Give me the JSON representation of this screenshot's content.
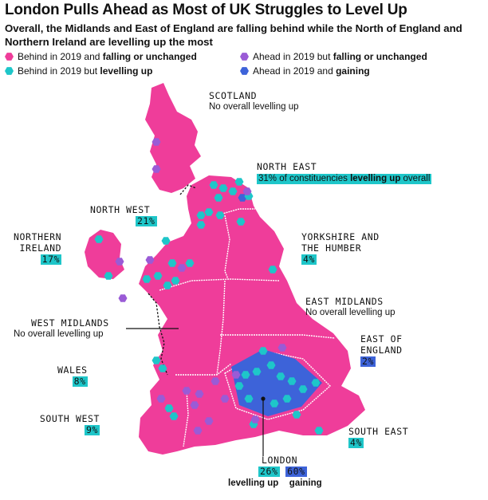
{
  "title": "London Pulls Ahead as Most of UK Struggles to Level Up",
  "subtitle": "Overall, the Midlands and East of England are falling behind while the North of England and Northern Ireland are levelling up the most",
  "colors": {
    "pink": "#ef3d9a",
    "purple": "#9a5bd6",
    "teal": "#1ec6c9",
    "blue": "#3d63d9"
  },
  "legend": [
    {
      "pre": "Behind in 2019 and ",
      "bold": "falling or unchanged",
      "color": "#ef3d9a"
    },
    {
      "pre": "Ahead in 2019 but ",
      "bold": "falling or unchanged",
      "color": "#9a5bd6"
    },
    {
      "pre": "Behind in 2019 but ",
      "bold": "levelling up",
      "color": "#1ec6c9"
    },
    {
      "pre": "Ahead in 2019 and ",
      "bold": "gaining",
      "color": "#3d63d9"
    }
  ],
  "regions": {
    "scotland": {
      "name": "SCOTLAND",
      "note": "No overall levelling up"
    },
    "north_east": {
      "name": "NORTH EAST",
      "note_pre": "31% of constituencies ",
      "note_bold": "levelling up",
      "note_post": " overall"
    },
    "north_west": {
      "name": "NORTH WEST",
      "pct": "21%"
    },
    "northern_ireland": {
      "name1": "NORTHERN",
      "name2": "IRELAND",
      "pct": "17%"
    },
    "yorkshire": {
      "name1": "YORKSHIRE AND",
      "name2": "THE HUMBER",
      "pct": "4%"
    },
    "east_midlands": {
      "name": "EAST MIDLANDS",
      "note": "No overall levelling up"
    },
    "west_midlands": {
      "name": "WEST MIDLANDS",
      "note": "No overall levelling up"
    },
    "east_of_england": {
      "name1": "EAST OF",
      "name2": "ENGLAND",
      "pct": "2%"
    },
    "wales": {
      "name": "WALES",
      "pct": "8%"
    },
    "south_west": {
      "name": "SOUTH WEST",
      "pct": "9%"
    },
    "south_east": {
      "name": "SOUTH EAST",
      "pct": "4%"
    },
    "london": {
      "name": "LONDON",
      "pct_levelling": "26%",
      "pct_gaining": "60%",
      "label_levelling": "levelling up",
      "label_gaining": "gaining"
    }
  }
}
